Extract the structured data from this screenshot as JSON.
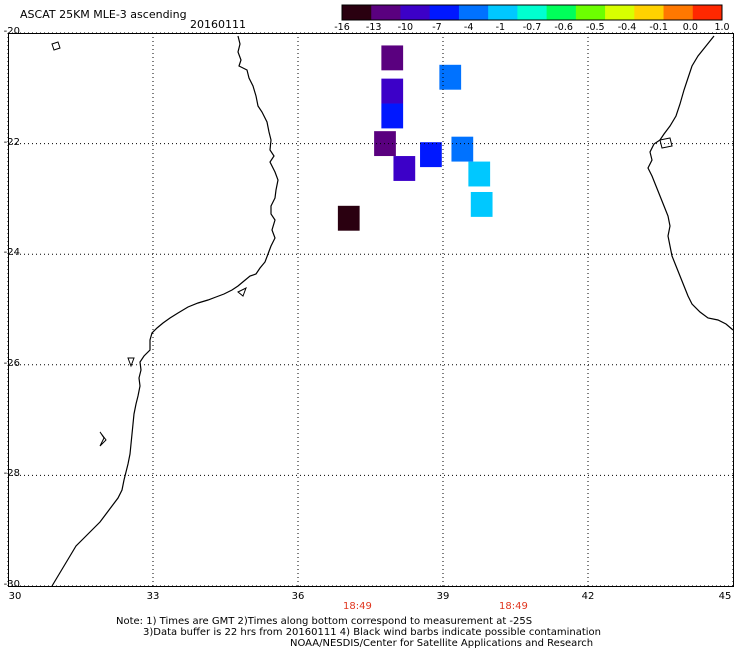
{
  "header": {
    "title": "ASCAT 25KM MLE-3 ascending",
    "date": "20160111"
  },
  "colorbar": {
    "labels": [
      "-16",
      "-13",
      "-10",
      "-7",
      "-4",
      "-1",
      "-0.7",
      "-0.6",
      "-0.5",
      "-0.4",
      "-0.1",
      "0.0",
      "1.0"
    ],
    "colors": [
      "#2a0010",
      "#5a007f",
      "#3c00c8",
      "#0018ff",
      "#0072ff",
      "#00c8ff",
      "#00ffd0",
      "#00ff5a",
      "#6cff00",
      "#d8ff00",
      "#ffd200",
      "#ff7800",
      "#ff2800"
    ]
  },
  "axes": {
    "lat_labels": [
      "-20",
      "-22",
      "-24",
      "-26",
      "-28",
      "-30"
    ],
    "lon_labels": [
      "30",
      "33",
      "36",
      "39",
      "42",
      "45"
    ]
  },
  "times": [
    "18:49",
    "18:49"
  ],
  "notes": [
    "Note: 1) Times are GMT 2)Times along bottom correspond to measurement at -25S",
    "3)Data buffer is 22 hrs from 20160111 4) Black wind barbs indicate possible contamination",
    "NOAA/NESDIS/Center for Satellite Applications and Research"
  ],
  "map_data": {
    "lon_range": [
      30,
      45
    ],
    "lat_range": [
      -30,
      -20
    ],
    "cells": [
      {
        "lon": 37.05,
        "lat": -23.35,
        "value": -16,
        "color": "#2a0010"
      },
      {
        "lon": 37.95,
        "lat": -20.45,
        "value": -13,
        "color": "#5a007f"
      },
      {
        "lon": 37.8,
        "lat": -22.0,
        "value": -13,
        "color": "#5a007f"
      },
      {
        "lon": 37.95,
        "lat": -21.05,
        "value": -10,
        "color": "#3c00c8"
      },
      {
        "lon": 38.2,
        "lat": -22.45,
        "value": -10,
        "color": "#3c00c8"
      },
      {
        "lon": 37.95,
        "lat": -21.5,
        "value": -7,
        "color": "#0018ff"
      },
      {
        "lon": 38.75,
        "lat": -22.2,
        "value": -7,
        "color": "#0018ff"
      },
      {
        "lon": 39.15,
        "lat": -20.8,
        "value": -4,
        "color": "#0072ff"
      },
      {
        "lon": 39.4,
        "lat": -22.1,
        "value": -4,
        "color": "#0072ff"
      },
      {
        "lon": 39.75,
        "lat": -22.55,
        "value": -1,
        "color": "#00c8ff"
      },
      {
        "lon": 39.8,
        "lat": -23.1,
        "value": -1,
        "color": "#00c8ff"
      }
    ]
  }
}
